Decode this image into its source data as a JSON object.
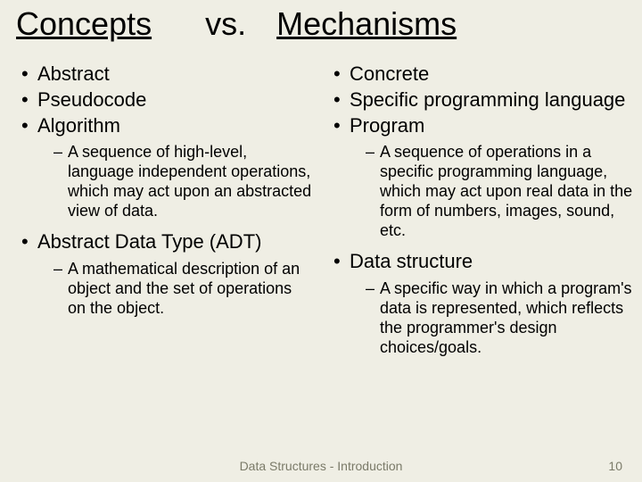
{
  "background_color": "#efeee4",
  "text_color": "#000000",
  "footer_color": "#7a7a68",
  "font_family": "Arial",
  "title": {
    "left": "Concepts",
    "vs": "vs.",
    "right": "Mechanisms",
    "fontsize": 36,
    "underline_sides": true
  },
  "left_column": {
    "bullets": [
      {
        "text": "Abstract"
      },
      {
        "text": "Pseudocode"
      },
      {
        "text": "Algorithm",
        "sub": "A sequence of high-level, language independent operations, which may act upon an abstracted view of data."
      },
      {
        "text": "Abstract Data Type (ADT)",
        "sub": "A mathematical description of an object and the set of operations on the object."
      }
    ]
  },
  "right_column": {
    "bullets": [
      {
        "text": "Concrete"
      },
      {
        "text": "Specific programming language"
      },
      {
        "text": "Program",
        "sub": "A sequence of operations in a specific programming language, which may act upon real data in the form of numbers, images, sound, etc."
      },
      {
        "text": "Data structure",
        "sub": "A specific way in which a program's data is represented, which reflects the programmer's design choices/goals."
      }
    ]
  },
  "bullet_fontsize_level1": 22,
  "bullet_fontsize_level2": 18,
  "footer": {
    "center": "Data Structures - Introduction",
    "page_number": "10"
  }
}
